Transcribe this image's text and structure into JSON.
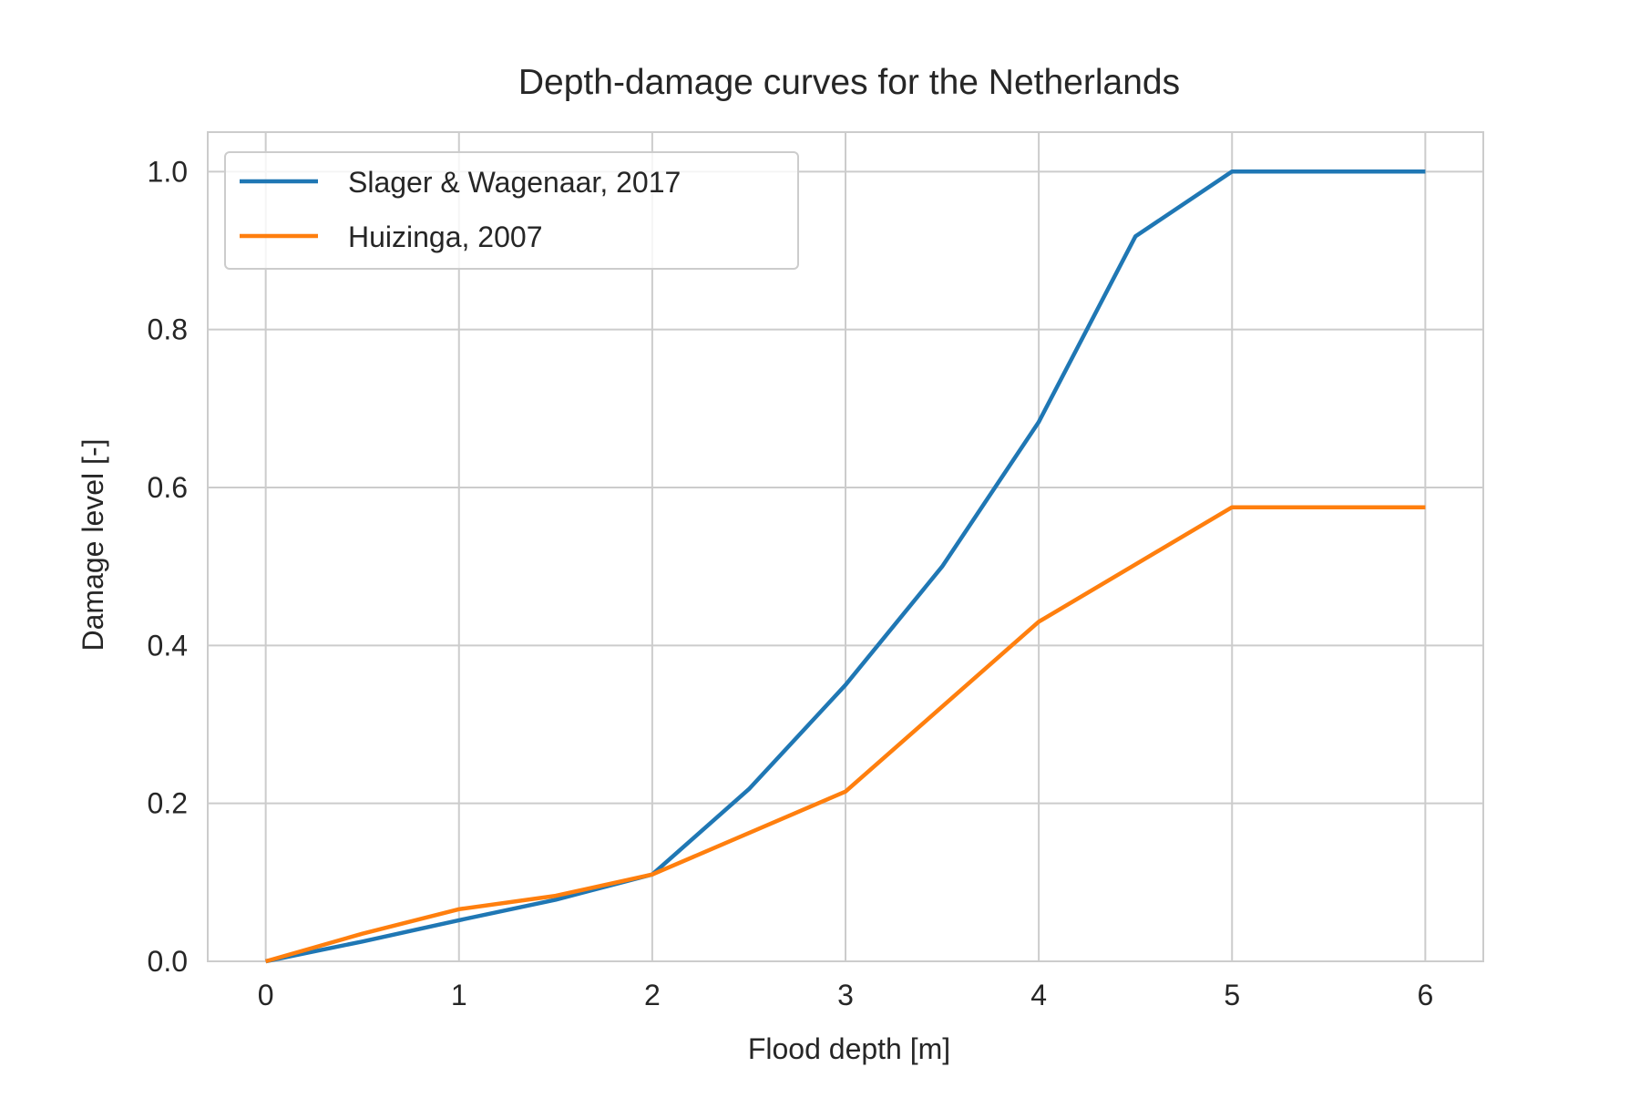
{
  "chart_data": {
    "type": "line",
    "title": "Depth-damage curves for the Netherlands",
    "xlabel": "Flood depth [m]",
    "ylabel": "Damage level [-]",
    "xlim": [
      -0.3,
      6.3
    ],
    "ylim": [
      0.0,
      1.05
    ],
    "xticks": [
      0,
      1,
      2,
      3,
      4,
      5,
      6
    ],
    "xtick_labels": [
      "0",
      "1",
      "2",
      "3",
      "4",
      "5",
      "6"
    ],
    "yticks": [
      0.0,
      0.2,
      0.4,
      0.6,
      0.8,
      1.0
    ],
    "ytick_labels": [
      "0.0",
      "0.2",
      "0.4",
      "0.6",
      "0.8",
      "1.0"
    ],
    "grid": true,
    "legend_position": "upper-left",
    "series": [
      {
        "name": "Slager & Wagenaar, 2017",
        "color": "#1f77b4",
        "x": [
          0,
          0.5,
          1,
          1.5,
          2,
          2.5,
          3,
          3.5,
          4,
          4.5,
          5,
          6
        ],
        "y": [
          0.0,
          0.025,
          0.052,
          0.078,
          0.11,
          0.218,
          0.35,
          0.5,
          0.683,
          0.918,
          1.0,
          1.0
        ]
      },
      {
        "name": "Huizinga, 2007",
        "color": "#ff7f0e",
        "x": [
          0,
          0.5,
          1,
          1.5,
          2,
          3,
          4,
          5,
          6
        ],
        "y": [
          0.0,
          0.035,
          0.066,
          0.083,
          0.11,
          0.215,
          0.43,
          0.575,
          0.575
        ]
      }
    ]
  }
}
